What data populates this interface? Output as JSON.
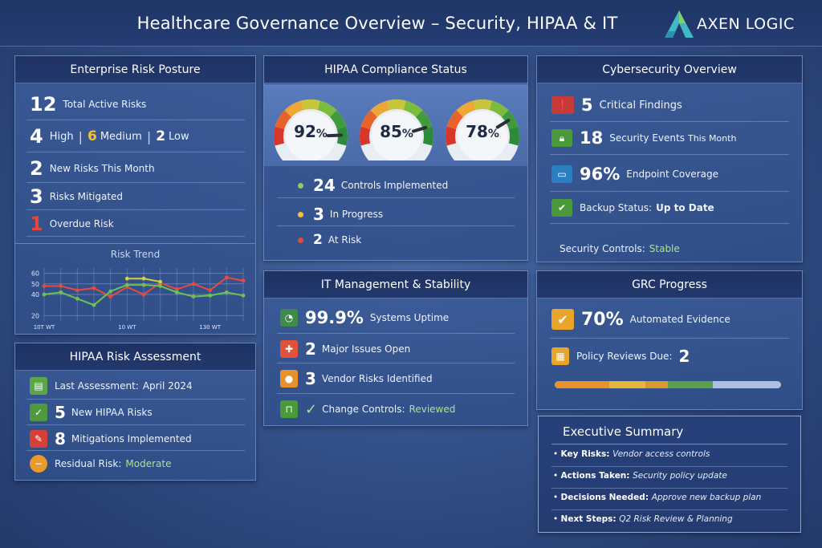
{
  "header": {
    "title": "Healthcare Governance Overview – Security, HIPAA & IT",
    "logo_text": "AXEN LOGIC"
  },
  "risk_posture": {
    "title": "Enterprise Risk Posture",
    "total_value": "12",
    "total_label": "Total Active Risks",
    "high_value": "4",
    "high_label": "High",
    "medium_value": "6",
    "medium_label": "Medium",
    "low_value": "2",
    "low_label": "Low",
    "new_value": "2",
    "new_label": "New Risks This Month",
    "mitigated_value": "3",
    "mitigated_label": "Risks Mitigated",
    "overdue_value": "1",
    "overdue_label": "Overdue Risk",
    "trend_title": "Risk Trend"
  },
  "chart_data": {
    "type": "line",
    "title": "Risk Trend",
    "x": [
      "10T WT",
      "",
      "",
      "",
      "",
      "10 WT",
      "",
      "",
      "",
      "",
      "130 WT",
      "",
      ""
    ],
    "x_ticks": [
      "10T WT",
      "10 WT",
      "130 WT"
    ],
    "yticks": [
      20,
      40,
      50,
      60
    ],
    "ylim": [
      15,
      65
    ],
    "series": [
      {
        "color": "#e84a3f",
        "values": [
          48,
          48,
          44,
          46,
          38,
          47,
          40,
          51,
          45,
          50,
          44,
          56,
          53
        ]
      },
      {
        "color": "#d8d03a",
        "values": [
          null,
          null,
          null,
          null,
          null,
          55,
          55,
          52,
          null,
          null,
          null,
          null,
          null
        ]
      },
      {
        "color": "#6ec24f",
        "values": [
          40,
          42,
          36,
          30,
          43,
          49,
          49,
          48,
          42,
          38,
          39,
          42,
          39
        ]
      }
    ],
    "grid": true
  },
  "hipaa_risk": {
    "title": "HIPAA Risk Assessment",
    "last_label": "Last Assessment:",
    "last_value": "April 2024",
    "new_value": "5",
    "new_label": "New HIPAA Risks",
    "mit_value": "8",
    "mit_label": "Mitigations Implemented",
    "residual_label": "Residual Risk:",
    "residual_value": "Moderate"
  },
  "hipaa_compliance": {
    "title": "HIPAA Compliance Status",
    "gauges": [
      {
        "value": "92",
        "fraction": 0.92
      },
      {
        "value": "85",
        "fraction": 0.85
      },
      {
        "value": "78",
        "fraction": 0.78
      }
    ],
    "percent": "%",
    "implemented_value": "24",
    "implemented_label": "Controls Implemented",
    "progress_value": "3",
    "progress_label": "In Progress",
    "atrisk_value": "2",
    "atrisk_label": "At Risk"
  },
  "it_management": {
    "title": "IT Management & Stability",
    "uptime_value": "99.9%",
    "uptime_label": "Systems Uptime",
    "issues_value": "2",
    "issues_label": "Major Issues Open",
    "vendor_value": "3",
    "vendor_label": "Vendor Risks Identified",
    "change_label": "Change Controls:",
    "change_value": "Reviewed"
  },
  "cybersecurity": {
    "title": "Cybersecurity Overview",
    "critical_value": "5",
    "critical_label": "Critical Findings",
    "events_value": "18",
    "events_label": "Security Events",
    "events_suffix": "This Month",
    "endpoint_value": "96%",
    "endpoint_label": "Endpoint Coverage",
    "backup_label": "Backup Status:",
    "backup_value": "Up to Date",
    "controls_label": "Security Controls:",
    "controls_value": "Stable"
  },
  "grc": {
    "title": "GRC Progress",
    "evidence_value": "70%",
    "evidence_label": "Automated Evidence",
    "policy_label": "Policy Reviews Due:",
    "policy_value": "2",
    "progress_fraction": 0.7
  },
  "summary": {
    "title": "Executive Summary",
    "items": [
      {
        "label": "Key Risks:",
        "value": "Vendor access controls"
      },
      {
        "label": "Actions Taken:",
        "value": "Security policy update"
      },
      {
        "label": "Decisions Needed:",
        "value": "Approve new backup plan"
      },
      {
        "label": "Next Steps:",
        "value": "Q2 Risk Review & Planning"
      }
    ]
  }
}
